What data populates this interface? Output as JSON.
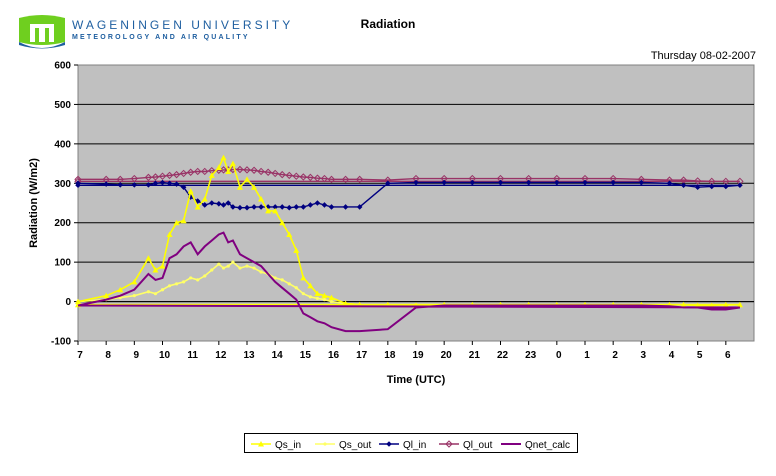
{
  "header": {
    "university": "WAGENINGEN UNIVERSITY",
    "department": "METEOROLOGY AND AIR QUALITY",
    "title": "Radiation",
    "date": "Thursday 08-02-2007"
  },
  "colors": {
    "plot_background": "#c0c0c0",
    "Qs_in": "#ffff00",
    "Qs_out": "#ffff66",
    "Ql_in": "#000080",
    "Ql_out": "#993366",
    "Qnet_calc": "#800080",
    "logo_green": "#6fcf1f",
    "logo_blue": "#1f5fa0"
  },
  "chart_data": {
    "type": "line",
    "title": "Radiation",
    "xlabel": "Time (UTC)",
    "ylabel": "Radiation (W/m2)",
    "ylim": [
      -100,
      600
    ],
    "yticks": [
      "-100",
      "0",
      "100",
      "200",
      "300",
      "400",
      "500",
      "600"
    ],
    "xticks": [
      "7",
      "8",
      "9",
      "10",
      "11",
      "12",
      "13",
      "14",
      "15",
      "16",
      "17",
      "18",
      "19",
      "20",
      "21",
      "22",
      "23",
      "0",
      "1",
      "2",
      "3",
      "4",
      "5",
      "6"
    ],
    "grid": "horizontal",
    "legend_position": "bottom",
    "x": [
      "07:00",
      "08:00",
      "08:30",
      "09:00",
      "09:30",
      "09:45",
      "10:00",
      "10:15",
      "10:30",
      "10:45",
      "11:00",
      "11:15",
      "11:30",
      "11:45",
      "12:00",
      "12:10",
      "12:20",
      "12:30",
      "12:45",
      "13:00",
      "13:15",
      "13:30",
      "13:45",
      "14:00",
      "14:15",
      "14:30",
      "14:45",
      "15:00",
      "15:15",
      "15:30",
      "15:45",
      "16:00",
      "16:30",
      "17:00",
      "18:00",
      "19:00",
      "20:00",
      "21:00",
      "22:00",
      "23:00",
      "00:00",
      "01:00",
      "02:00",
      "03:00",
      "04:00",
      "04:30",
      "05:00",
      "05:30",
      "06:00",
      "06:30",
      "07:00"
    ],
    "series": [
      {
        "name": "Qs_in",
        "values": [
          0,
          15,
          30,
          50,
          110,
          80,
          90,
          170,
          200,
          205,
          280,
          240,
          260,
          320,
          340,
          365,
          330,
          350,
          290,
          310,
          290,
          260,
          230,
          230,
          200,
          170,
          130,
          60,
          40,
          20,
          15,
          10,
          -5,
          -8,
          -8,
          -10,
          -8,
          -8,
          -8,
          -8,
          -8,
          -8,
          -8,
          -8,
          -8,
          -8,
          -10,
          -10,
          -8,
          -8,
          -8
        ]
      },
      {
        "name": "Qs_out",
        "values": [
          0,
          5,
          10,
          15,
          25,
          20,
          30,
          40,
          45,
          50,
          60,
          55,
          65,
          80,
          95,
          85,
          90,
          100,
          85,
          90,
          85,
          75,
          70,
          60,
          55,
          45,
          35,
          20,
          12,
          8,
          5,
          0,
          -5,
          -8,
          -8,
          -8,
          -8,
          -8,
          -8,
          -8,
          -8,
          -8,
          -8,
          -8,
          -8,
          -8,
          -10,
          -10,
          -10,
          -8,
          -8
        ]
      },
      {
        "name": "Ql_in",
        "values": [
          300,
          298,
          296,
          296,
          296,
          300,
          302,
          300,
          298,
          290,
          265,
          255,
          245,
          250,
          248,
          245,
          250,
          240,
          238,
          238,
          240,
          240,
          240,
          240,
          240,
          238,
          240,
          240,
          245,
          250,
          245,
          240,
          240,
          240,
          300,
          302,
          302,
          302,
          302,
          302,
          302,
          302,
          302,
          302,
          300,
          295,
          290,
          292,
          292,
          295,
          295
        ]
      },
      {
        "name": "Ql_out",
        "values": [
          310,
          310,
          310,
          312,
          315,
          316,
          318,
          320,
          322,
          325,
          328,
          330,
          330,
          332,
          333,
          334,
          334,
          335,
          335,
          334,
          333,
          330,
          328,
          325,
          322,
          320,
          318,
          316,
          315,
          313,
          312,
          310,
          310,
          310,
          308,
          312,
          312,
          312,
          312,
          312,
          312,
          312,
          312,
          310,
          308,
          308,
          306,
          305,
          305,
          305,
          305
        ]
      },
      {
        "name": "Qnet_calc",
        "values": [
          -10,
          5,
          15,
          30,
          70,
          55,
          60,
          110,
          120,
          140,
          150,
          120,
          140,
          155,
          170,
          175,
          150,
          155,
          120,
          110,
          100,
          90,
          70,
          50,
          35,
          20,
          5,
          -30,
          -40,
          -50,
          -55,
          -65,
          -75,
          -75,
          -70,
          -15,
          -10,
          -10,
          -10,
          -10,
          -10,
          -10,
          -10,
          -10,
          -12,
          -15,
          -15,
          -20,
          -20,
          -15,
          -10
        ]
      }
    ]
  }
}
